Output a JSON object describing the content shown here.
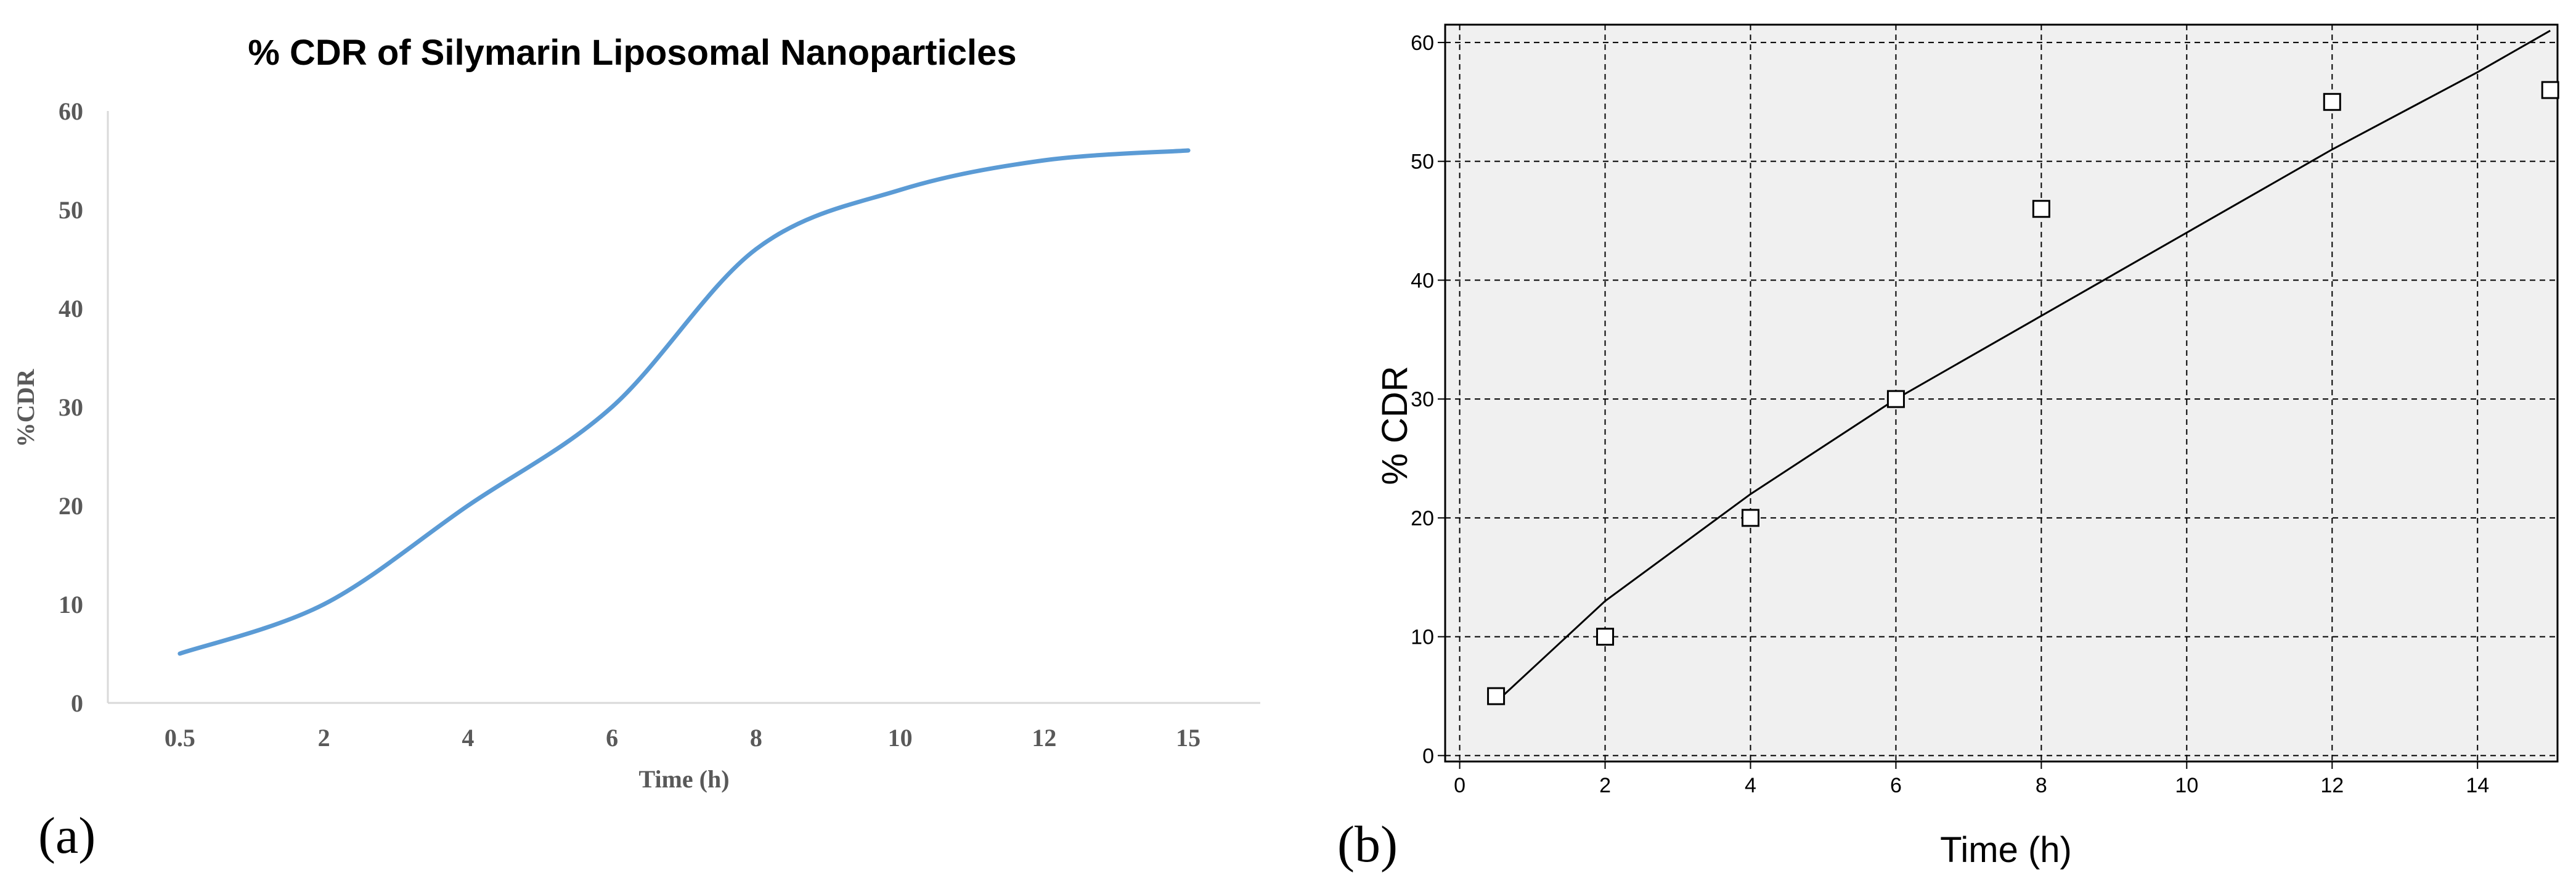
{
  "chart_data": [
    {
      "panel_label": "(a)",
      "type": "line",
      "title": "% CDR of Silymarin Liposomal Nanoparticles",
      "xlabel": "Time (h)",
      "ylabel": "%CDR",
      "categories": [
        "0.5",
        "2",
        "4",
        "6",
        "8",
        "10",
        "12",
        "15"
      ],
      "series": [
        {
          "values": [
            5,
            10,
            20,
            30,
            46,
            52,
            55,
            56
          ],
          "color": "#5b9bd5"
        }
      ],
      "ylim": [
        0,
        60
      ],
      "yticks": [
        0,
        10,
        20,
        30,
        40,
        50,
        60
      ],
      "grid": false,
      "legend": "none"
    },
    {
      "panel_label": "(b)",
      "type": "scatter",
      "xlabel": "Time (h)",
      "ylabel": "% CDR",
      "x": [
        0.5,
        2,
        4,
        6,
        8,
        12,
        15
      ],
      "y": [
        5,
        10,
        20,
        30,
        46,
        55,
        56
      ],
      "fit_line": {
        "x": [
          0.5,
          2,
          4,
          6,
          8,
          10,
          12,
          14,
          15
        ],
        "y": [
          4.5,
          13,
          22,
          30,
          37,
          44,
          51,
          57.5,
          61
        ]
      },
      "xlim": [
        -0.2,
        15.1
      ],
      "ylim": [
        -0.5,
        61.5
      ],
      "xticks": [
        0,
        2,
        4,
        6,
        8,
        10,
        12,
        14
      ],
      "yticks": [
        0,
        10,
        20,
        30,
        40,
        50,
        60
      ],
      "grid": true,
      "legend": "none",
      "background": "#f0f0f0"
    }
  ]
}
